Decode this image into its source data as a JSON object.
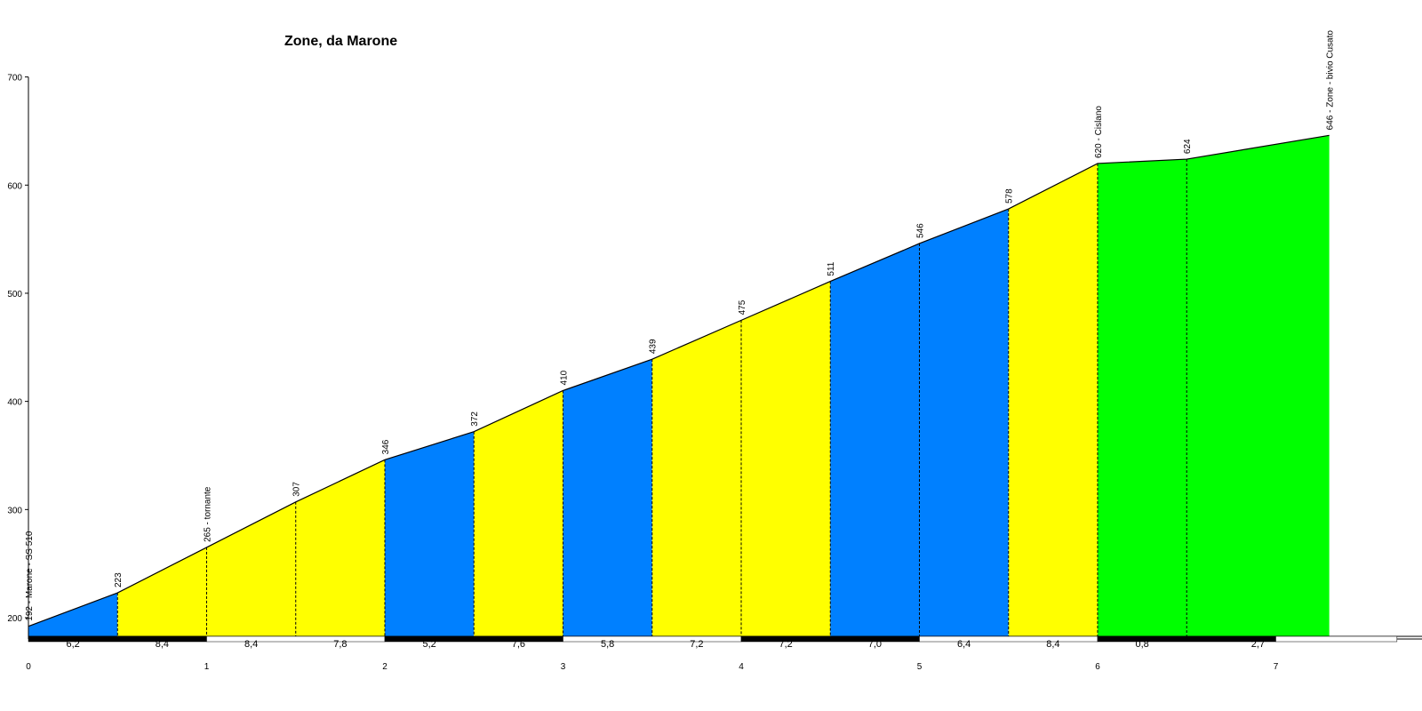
{
  "chart_data": {
    "type": "area",
    "title": "Zone, da Marone",
    "xlabel": "",
    "ylabel": "",
    "xlim": [
      0,
      7.68
    ],
    "ylim": [
      182,
      700
    ],
    "x_ticks": [
      0,
      1,
      2,
      3,
      4,
      5,
      6,
      7
    ],
    "y_ticks": [
      200,
      300,
      400,
      500,
      600,
      700
    ],
    "grid": false,
    "colors": {
      "blue": "#0080ff",
      "yellow": "#ffff00",
      "green": "#00ff00",
      "line": "#000000",
      "bar_black": "#000000",
      "bar_white": "#ffffff"
    },
    "points": [
      {
        "x": 0.0,
        "y": 192,
        "label": "192 - Marone -  SS  510"
      },
      {
        "x": 0.5,
        "y": 223,
        "label": "223"
      },
      {
        "x": 1.0,
        "y": 265,
        "label": "265 - tornante"
      },
      {
        "x": 1.5,
        "y": 307,
        "label": "307"
      },
      {
        "x": 2.0,
        "y": 346,
        "label": "346"
      },
      {
        "x": 2.5,
        "y": 372,
        "label": "372"
      },
      {
        "x": 3.0,
        "y": 410,
        "label": "410"
      },
      {
        "x": 3.5,
        "y": 439,
        "label": "439"
      },
      {
        "x": 4.0,
        "y": 475,
        "label": "475"
      },
      {
        "x": 4.5,
        "y": 511,
        "label": "511"
      },
      {
        "x": 5.0,
        "y": 546,
        "label": "546"
      },
      {
        "x": 5.5,
        "y": 578,
        "label": "578"
      },
      {
        "x": 6.0,
        "y": 620,
        "label": "620 - Cislano"
      },
      {
        "x": 6.5,
        "y": 624,
        "label": "624"
      },
      {
        "x": 7.3,
        "y": 646,
        "label": "646 - Zone - bivio Cusato"
      }
    ],
    "segments": [
      {
        "from": 0.0,
        "to": 0.5,
        "gradient": "6,2",
        "color": "blue"
      },
      {
        "from": 0.5,
        "to": 1.0,
        "gradient": "8,4",
        "color": "yellow"
      },
      {
        "from": 1.0,
        "to": 1.5,
        "gradient": "8,4",
        "color": "yellow"
      },
      {
        "from": 1.5,
        "to": 2.0,
        "gradient": "7,8",
        "color": "yellow"
      },
      {
        "from": 2.0,
        "to": 2.5,
        "gradient": "5,2",
        "color": "blue"
      },
      {
        "from": 2.5,
        "to": 3.0,
        "gradient": "7,6",
        "color": "yellow"
      },
      {
        "from": 3.0,
        "to": 3.5,
        "gradient": "5,8",
        "color": "blue"
      },
      {
        "from": 3.5,
        "to": 4.0,
        "gradient": "7,2",
        "color": "yellow"
      },
      {
        "from": 4.0,
        "to": 4.5,
        "gradient": "7,2",
        "color": "yellow"
      },
      {
        "from": 4.5,
        "to": 5.0,
        "gradient": "7,0",
        "color": "blue"
      },
      {
        "from": 5.0,
        "to": 5.5,
        "gradient": "6,4",
        "color": "blue"
      },
      {
        "from": 5.5,
        "to": 6.0,
        "gradient": "8,4",
        "color": "yellow"
      },
      {
        "from": 6.0,
        "to": 6.5,
        "gradient": "0,8",
        "color": "green"
      },
      {
        "from": 6.5,
        "to": 7.3,
        "gradient": "2,7",
        "color": "green"
      }
    ]
  }
}
